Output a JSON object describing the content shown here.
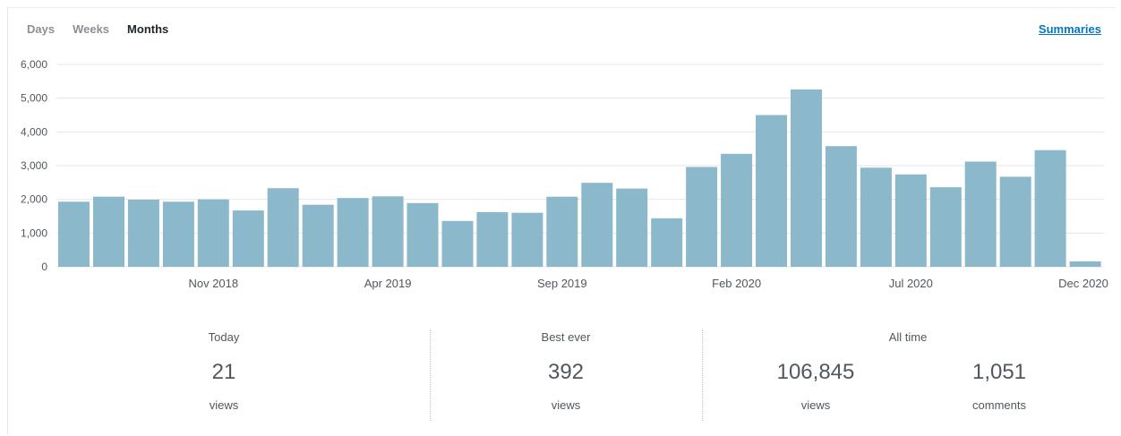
{
  "tabs": [
    {
      "label": "Days",
      "active": false
    },
    {
      "label": "Weeks",
      "active": false
    },
    {
      "label": "Months",
      "active": true
    }
  ],
  "summaries_link": "Summaries",
  "chart_data": {
    "type": "bar",
    "title": "",
    "xlabel": "",
    "ylabel": "",
    "ylim": [
      0,
      6000
    ],
    "yticks": [
      "0",
      "1,000",
      "2,000",
      "3,000",
      "4,000",
      "5,000",
      "6,000"
    ],
    "grid": true,
    "bar_color": "#8cb8cb",
    "categories": [
      "Jul 2018",
      "Aug 2018",
      "Sep 2018",
      "Oct 2018",
      "Nov 2018",
      "Dec 2018",
      "Jan 2019",
      "Feb 2019",
      "Mar 2019",
      "Apr 2019",
      "May 2019",
      "Jun 2019",
      "Jul 2019",
      "Aug 2019",
      "Sep 2019",
      "Oct 2019",
      "Nov 2019",
      "Dec 2019",
      "Jan 2020",
      "Feb 2020",
      "Mar 2020",
      "Apr 2020",
      "May 2020",
      "Jun 2020",
      "Jul 2020",
      "Aug 2020",
      "Sep 2020",
      "Oct 2020",
      "Nov 2020",
      "Dec 2020"
    ],
    "values": [
      1930,
      2080,
      1990,
      1930,
      2000,
      1670,
      2330,
      1840,
      2040,
      2090,
      1890,
      1360,
      1620,
      1600,
      2080,
      2490,
      2320,
      1440,
      2960,
      3350,
      4500,
      5260,
      3580,
      2940,
      2740,
      2360,
      3120,
      2670,
      3460,
      160
    ],
    "xtick_labels": [
      {
        "index": 4,
        "label": "Nov 2018"
      },
      {
        "index": 9,
        "label": "Apr 2019"
      },
      {
        "index": 14,
        "label": "Sep 2019"
      },
      {
        "index": 19,
        "label": "Feb 2020"
      },
      {
        "index": 24,
        "label": "Jul 2020"
      },
      {
        "index": 29,
        "label": "Dec 2020"
      }
    ]
  },
  "stats": {
    "today": {
      "label": "Today",
      "value": "21",
      "unit": "views"
    },
    "best_ever": {
      "label": "Best ever",
      "value": "392",
      "unit": "views"
    },
    "all_time": {
      "label": "All time",
      "views_value": "106,845",
      "views_unit": "views",
      "comments_value": "1,051",
      "comments_unit": "comments"
    }
  }
}
